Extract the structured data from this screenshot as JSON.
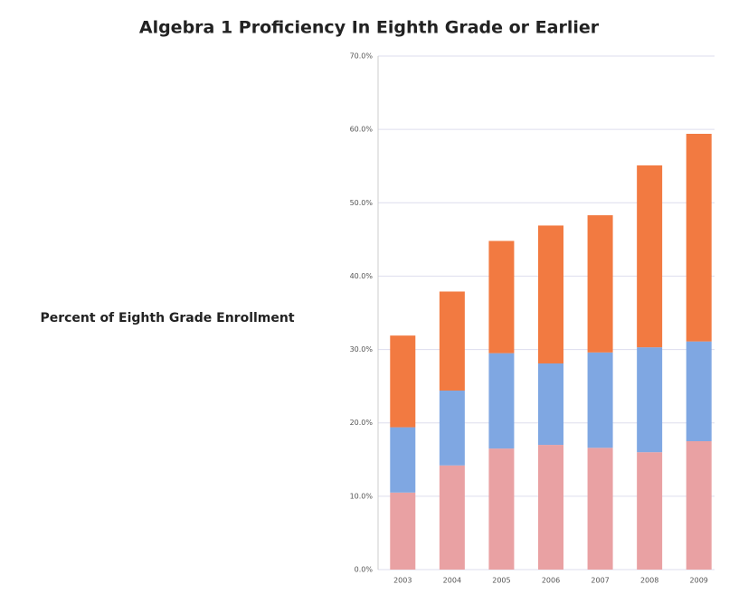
{
  "chart_data": {
    "type": "stacked_bar",
    "title": "Algebra 1 Proficiency In Eighth Grade or Earlier",
    "y_label": "Percent of Eighth Grade Enrollment",
    "categories": [
      "2003",
      "2004",
      "2005",
      "2006",
      "2007",
      "2008",
      "2009"
    ],
    "series": [
      {
        "color": "#e9a1a3",
        "values": [
          10.5,
          14.2,
          16.5,
          17.0,
          16.6,
          16.0,
          17.5
        ]
      },
      {
        "color": "#7fa7e2",
        "values": [
          8.9,
          10.2,
          13.0,
          11.1,
          13.0,
          14.3,
          13.6
        ]
      },
      {
        "color": "#f27a41",
        "values": [
          12.5,
          13.5,
          15.3,
          18.8,
          18.7,
          24.8,
          28.3
        ]
      }
    ],
    "ylim": [
      0,
      70
    ],
    "yticks": [
      {
        "value": 0,
        "label": "0.0%"
      },
      {
        "value": 10,
        "label": "10.0%"
      },
      {
        "value": 20,
        "label": "20.0%"
      },
      {
        "value": 30,
        "label": "30.0%"
      },
      {
        "value": 40,
        "label": "40.0%"
      },
      {
        "value": 50,
        "label": "50.0%"
      },
      {
        "value": 60,
        "label": "60.0%"
      },
      {
        "value": 70,
        "label": "70.0%"
      }
    ],
    "grid": true
  }
}
